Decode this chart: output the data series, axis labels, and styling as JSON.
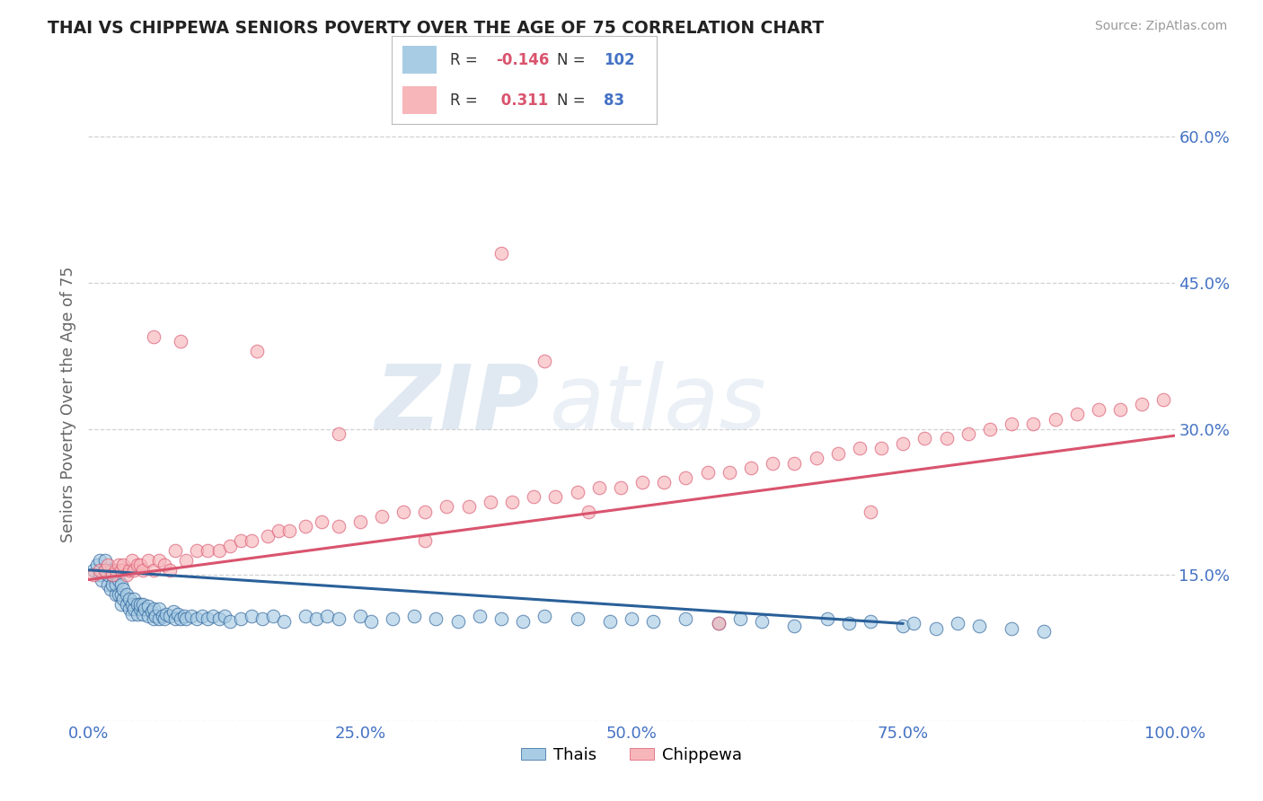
{
  "title": "THAI VS CHIPPEWA SENIORS POVERTY OVER THE AGE OF 75 CORRELATION CHART",
  "source": "Source: ZipAtlas.com",
  "ylabel": "Seniors Poverty Over the Age of 75",
  "xlim": [
    0,
    1.0
  ],
  "ylim": [
    0,
    0.65
  ],
  "yticks": [
    0.0,
    0.15,
    0.3,
    0.45,
    0.6
  ],
  "ytick_labels": [
    "",
    "15.0%",
    "30.0%",
    "45.0%",
    "60.0%"
  ],
  "xticks": [
    0.0,
    0.25,
    0.5,
    0.75,
    1.0
  ],
  "xtick_labels": [
    "0.0%",
    "25.0%",
    "50.0%",
    "75.0%",
    "100.0%"
  ],
  "thai_color": "#a8cce4",
  "chippewa_color": "#f7b6ba",
  "thai_line_color": "#2a6099",
  "chippewa_line_color": "#d9546e",
  "background_color": "#ffffff",
  "grid_color": "#cccccc",
  "title_color": "#222222",
  "axis_label_color": "#666666",
  "tick_color": "#4472c4",
  "legend_R_color": "#d9546e",
  "legend_N_color": "#4472c4",
  "watermark_zip": "ZIP",
  "watermark_atlas": "atlas",
  "thai_scatter_x": [
    0.005,
    0.008,
    0.01,
    0.01,
    0.012,
    0.015,
    0.015,
    0.018,
    0.018,
    0.02,
    0.02,
    0.022,
    0.022,
    0.025,
    0.025,
    0.025,
    0.028,
    0.028,
    0.03,
    0.03,
    0.03,
    0.032,
    0.032,
    0.035,
    0.035,
    0.038,
    0.038,
    0.04,
    0.04,
    0.042,
    0.042,
    0.045,
    0.045,
    0.048,
    0.048,
    0.05,
    0.05,
    0.052,
    0.055,
    0.055,
    0.058,
    0.06,
    0.06,
    0.062,
    0.065,
    0.065,
    0.068,
    0.07,
    0.072,
    0.075,
    0.078,
    0.08,
    0.082,
    0.085,
    0.088,
    0.09,
    0.095,
    0.1,
    0.105,
    0.11,
    0.115,
    0.12,
    0.125,
    0.13,
    0.14,
    0.15,
    0.16,
    0.17,
    0.18,
    0.2,
    0.21,
    0.22,
    0.23,
    0.25,
    0.26,
    0.28,
    0.3,
    0.32,
    0.34,
    0.36,
    0.38,
    0.4,
    0.42,
    0.45,
    0.48,
    0.5,
    0.52,
    0.55,
    0.58,
    0.6,
    0.62,
    0.65,
    0.68,
    0.7,
    0.72,
    0.75,
    0.76,
    0.78,
    0.8,
    0.82,
    0.85,
    0.88
  ],
  "thai_scatter_y": [
    0.155,
    0.16,
    0.15,
    0.165,
    0.145,
    0.155,
    0.165,
    0.14,
    0.15,
    0.135,
    0.155,
    0.14,
    0.15,
    0.13,
    0.14,
    0.15,
    0.13,
    0.145,
    0.12,
    0.13,
    0.14,
    0.125,
    0.135,
    0.12,
    0.13,
    0.115,
    0.125,
    0.11,
    0.12,
    0.115,
    0.125,
    0.11,
    0.12,
    0.115,
    0.12,
    0.11,
    0.12,
    0.115,
    0.108,
    0.118,
    0.112,
    0.105,
    0.115,
    0.108,
    0.105,
    0.115,
    0.108,
    0.105,
    0.11,
    0.108,
    0.112,
    0.105,
    0.11,
    0.105,
    0.108,
    0.105,
    0.108,
    0.105,
    0.108,
    0.105,
    0.108,
    0.105,
    0.108,
    0.102,
    0.105,
    0.108,
    0.105,
    0.108,
    0.102,
    0.108,
    0.105,
    0.108,
    0.105,
    0.108,
    0.102,
    0.105,
    0.108,
    0.105,
    0.102,
    0.108,
    0.105,
    0.102,
    0.108,
    0.105,
    0.102,
    0.105,
    0.102,
    0.105,
    0.1,
    0.105,
    0.102,
    0.098,
    0.105,
    0.1,
    0.102,
    0.098,
    0.1,
    0.095,
    0.1,
    0.098,
    0.095,
    0.092
  ],
  "chippewa_scatter_x": [
    0.005,
    0.01,
    0.015,
    0.018,
    0.022,
    0.025,
    0.028,
    0.03,
    0.032,
    0.035,
    0.038,
    0.04,
    0.042,
    0.045,
    0.048,
    0.05,
    0.055,
    0.06,
    0.065,
    0.07,
    0.075,
    0.08,
    0.09,
    0.1,
    0.11,
    0.12,
    0.13,
    0.14,
    0.15,
    0.165,
    0.175,
    0.185,
    0.2,
    0.215,
    0.23,
    0.25,
    0.27,
    0.29,
    0.31,
    0.33,
    0.35,
    0.37,
    0.39,
    0.41,
    0.43,
    0.45,
    0.47,
    0.49,
    0.51,
    0.53,
    0.55,
    0.57,
    0.59,
    0.61,
    0.63,
    0.65,
    0.67,
    0.69,
    0.71,
    0.73,
    0.75,
    0.77,
    0.79,
    0.81,
    0.83,
    0.85,
    0.87,
    0.89,
    0.91,
    0.93,
    0.95,
    0.97,
    0.99,
    0.06,
    0.085,
    0.155,
    0.23,
    0.31,
    0.38,
    0.42,
    0.46,
    0.58,
    0.72
  ],
  "chippewa_scatter_y": [
    0.15,
    0.155,
    0.155,
    0.16,
    0.15,
    0.155,
    0.16,
    0.155,
    0.16,
    0.15,
    0.155,
    0.165,
    0.155,
    0.16,
    0.16,
    0.155,
    0.165,
    0.155,
    0.165,
    0.16,
    0.155,
    0.175,
    0.165,
    0.175,
    0.175,
    0.175,
    0.18,
    0.185,
    0.185,
    0.19,
    0.195,
    0.195,
    0.2,
    0.205,
    0.2,
    0.205,
    0.21,
    0.215,
    0.215,
    0.22,
    0.22,
    0.225,
    0.225,
    0.23,
    0.23,
    0.235,
    0.24,
    0.24,
    0.245,
    0.245,
    0.25,
    0.255,
    0.255,
    0.26,
    0.265,
    0.265,
    0.27,
    0.275,
    0.28,
    0.28,
    0.285,
    0.29,
    0.29,
    0.295,
    0.3,
    0.305,
    0.305,
    0.31,
    0.315,
    0.32,
    0.32,
    0.325,
    0.33,
    0.395,
    0.39,
    0.38,
    0.295,
    0.185,
    0.48,
    0.37,
    0.215,
    0.1,
    0.215
  ],
  "thai_line_x0": 0.0,
  "thai_line_y0": 0.155,
  "thai_line_x1": 0.75,
  "thai_line_y1": 0.1,
  "chip_line_x0": 0.0,
  "chip_line_y0": 0.145,
  "chip_line_x1": 1.0,
  "chip_line_y1": 0.293
}
